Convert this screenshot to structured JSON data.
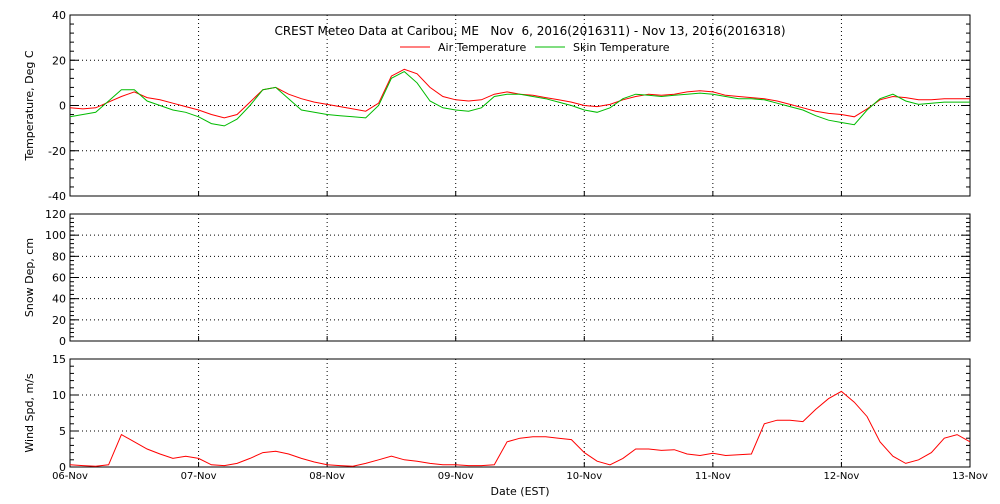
{
  "chart_data": [
    {
      "type": "line",
      "panel": "temperature",
      "title": "CREST Meteo Data at Caribou, ME   Nov  6, 2016(2016311) - Nov 13, 2016(2016318)",
      "xlabel": "",
      "ylabel": "Temperature, Deg C",
      "ylim": [
        -40,
        40
      ],
      "yticks": [
        -40,
        -20,
        0,
        20,
        40
      ],
      "xlim": [
        "2016-11-06",
        "2016-11-13"
      ],
      "grid": true,
      "legend_placement": "top-center",
      "series": [
        {
          "name": "Air Temperature",
          "color": "#ff0000",
          "x": [
            0.0,
            0.1,
            0.2,
            0.3,
            0.4,
            0.5,
            0.6,
            0.7,
            0.8,
            0.9,
            1.0,
            1.1,
            1.2,
            1.3,
            1.4,
            1.5,
            1.6,
            1.7,
            1.8,
            1.9,
            2.0,
            2.1,
            2.2,
            2.3,
            2.4,
            2.5,
            2.6,
            2.7,
            2.8,
            2.9,
            3.0,
            3.1,
            3.2,
            3.3,
            3.4,
            3.5,
            3.6,
            3.7,
            3.8,
            3.9,
            4.0,
            4.1,
            4.2,
            4.3,
            4.4,
            4.5,
            4.6,
            4.7,
            4.8,
            4.9,
            5.0,
            5.1,
            5.2,
            5.3,
            5.4,
            5.5,
            5.6,
            5.7,
            5.8,
            5.9,
            6.0,
            6.1,
            6.2,
            6.3,
            6.4,
            6.5,
            6.6,
            6.7,
            6.8,
            6.9,
            7.0
          ],
          "values": [
            -1,
            -1.5,
            -1,
            1.5,
            4,
            6,
            3.5,
            2.5,
            1,
            -0.5,
            -2,
            -4,
            -5.5,
            -4,
            1.5,
            7,
            8,
            5,
            3,
            1.5,
            0.5,
            -0.5,
            -1.5,
            -2.5,
            1,
            13,
            16,
            14,
            8,
            4,
            2.5,
            2,
            2.5,
            5,
            6,
            5,
            4.5,
            3.5,
            2.5,
            1.5,
            0,
            -0.5,
            0.5,
            2.5,
            4,
            5,
            4.5,
            5,
            6,
            6.5,
            6,
            4.5,
            4,
            3.5,
            3,
            2,
            0.5,
            -1,
            -2.5,
            -3.5,
            -4,
            -5,
            -1.5,
            2.5,
            4,
            3.5,
            2.5,
            2.5,
            3,
            3,
            3
          ]
        },
        {
          "name": "Skin Temperature",
          "color": "#00bb00",
          "x": [
            0.0,
            0.1,
            0.2,
            0.3,
            0.4,
            0.5,
            0.6,
            0.7,
            0.8,
            0.9,
            1.0,
            1.1,
            1.2,
            1.3,
            1.4,
            1.5,
            1.6,
            1.7,
            1.8,
            1.9,
            2.0,
            2.1,
            2.2,
            2.3,
            2.4,
            2.5,
            2.6,
            2.7,
            2.8,
            2.9,
            3.0,
            3.1,
            3.2,
            3.3,
            3.4,
            3.5,
            3.6,
            3.7,
            3.8,
            3.9,
            4.0,
            4.1,
            4.2,
            4.3,
            4.4,
            4.5,
            4.6,
            4.7,
            4.8,
            4.9,
            5.0,
            5.1,
            5.2,
            5.3,
            5.4,
            5.5,
            5.6,
            5.7,
            5.8,
            5.9,
            6.0,
            6.1,
            6.2,
            6.3,
            6.4,
            6.5,
            6.6,
            6.7,
            6.8,
            6.9,
            7.0
          ],
          "values": [
            -5,
            -4,
            -3,
            2,
            7,
            7,
            2,
            0,
            -2,
            -3,
            -5,
            -8,
            -9,
            -6,
            0,
            7,
            8,
            3,
            -2,
            -3,
            -4,
            -4.5,
            -5,
            -5.5,
            0,
            12,
            15,
            10,
            2,
            -1,
            -2,
            -2.5,
            -1,
            4,
            5,
            5,
            4,
            3,
            1.5,
            0,
            -2,
            -3,
            -1,
            3,
            5,
            4.5,
            4,
            4.5,
            5,
            5.5,
            5,
            4,
            3,
            3,
            2.5,
            1,
            -0.5,
            -2,
            -4.5,
            -6.5,
            -7.5,
            -8.5,
            -2,
            3,
            5,
            2,
            0.5,
            1,
            1.5,
            1.5,
            1.5
          ]
        }
      ]
    },
    {
      "type": "line",
      "panel": "snow_depth",
      "title": "",
      "xlabel": "",
      "ylabel": "Snow Dep, cm",
      "ylim": [
        0,
        120
      ],
      "yticks": [
        0,
        20,
        40,
        60,
        80,
        100,
        120
      ],
      "xlim": [
        "2016-11-06",
        "2016-11-13"
      ],
      "grid": true,
      "series": []
    },
    {
      "type": "line",
      "panel": "wind_speed",
      "title": "",
      "xlabel": "Date (EST)",
      "ylabel": "Wind Spd, m/s",
      "ylim": [
        0,
        15
      ],
      "yticks": [
        0,
        5,
        10,
        15
      ],
      "xlim": [
        "2016-11-06",
        "2016-11-13"
      ],
      "xticks": [
        "06-Nov",
        "07-Nov",
        "08-Nov",
        "09-Nov",
        "10-Nov",
        "11-Nov",
        "12-Nov",
        "13-Nov"
      ],
      "grid": true,
      "series": [
        {
          "color": "#ff0000",
          "x": [
            0.0,
            0.1,
            0.2,
            0.3,
            0.4,
            0.5,
            0.6,
            0.7,
            0.8,
            0.9,
            1.0,
            1.1,
            1.2,
            1.3,
            1.4,
            1.5,
            1.6,
            1.7,
            1.8,
            1.9,
            2.0,
            2.1,
            2.2,
            2.3,
            2.4,
            2.5,
            2.6,
            2.7,
            2.8,
            2.9,
            3.0,
            3.1,
            3.2,
            3.3,
            3.4,
            3.5,
            3.6,
            3.7,
            3.8,
            3.9,
            4.0,
            4.1,
            4.2,
            4.3,
            4.4,
            4.5,
            4.6,
            4.7,
            4.8,
            4.9,
            5.0,
            5.1,
            5.2,
            5.3,
            5.4,
            5.5,
            5.6,
            5.7,
            5.8,
            5.9,
            6.0,
            6.1,
            6.2,
            6.3,
            6.4,
            6.5,
            6.6,
            6.7,
            6.8,
            6.9,
            7.0
          ],
          "values": [
            0.3,
            0.2,
            0.1,
            0.3,
            4.5,
            3.5,
            2.5,
            1.8,
            1.2,
            1.5,
            1.2,
            0.3,
            0.2,
            0.5,
            1.2,
            2,
            2.2,
            1.8,
            1.2,
            0.7,
            0.3,
            0.2,
            0.1,
            0.5,
            1,
            1.5,
            1,
            0.8,
            0.5,
            0.3,
            0.3,
            0.2,
            0.2,
            0.3,
            3.5,
            4,
            4.2,
            4.2,
            4,
            3.8,
            2,
            0.8,
            0.3,
            1.2,
            2.5,
            2.5,
            2.3,
            2.4,
            1.8,
            1.6,
            1.9,
            1.6,
            1.7,
            1.8,
            6,
            6.5,
            6.5,
            6.3,
            8,
            9.5,
            10.5,
            9,
            7,
            3.5,
            1.5,
            0.5,
            1,
            2,
            4,
            4.5,
            3.5
          ]
        }
      ]
    }
  ]
}
